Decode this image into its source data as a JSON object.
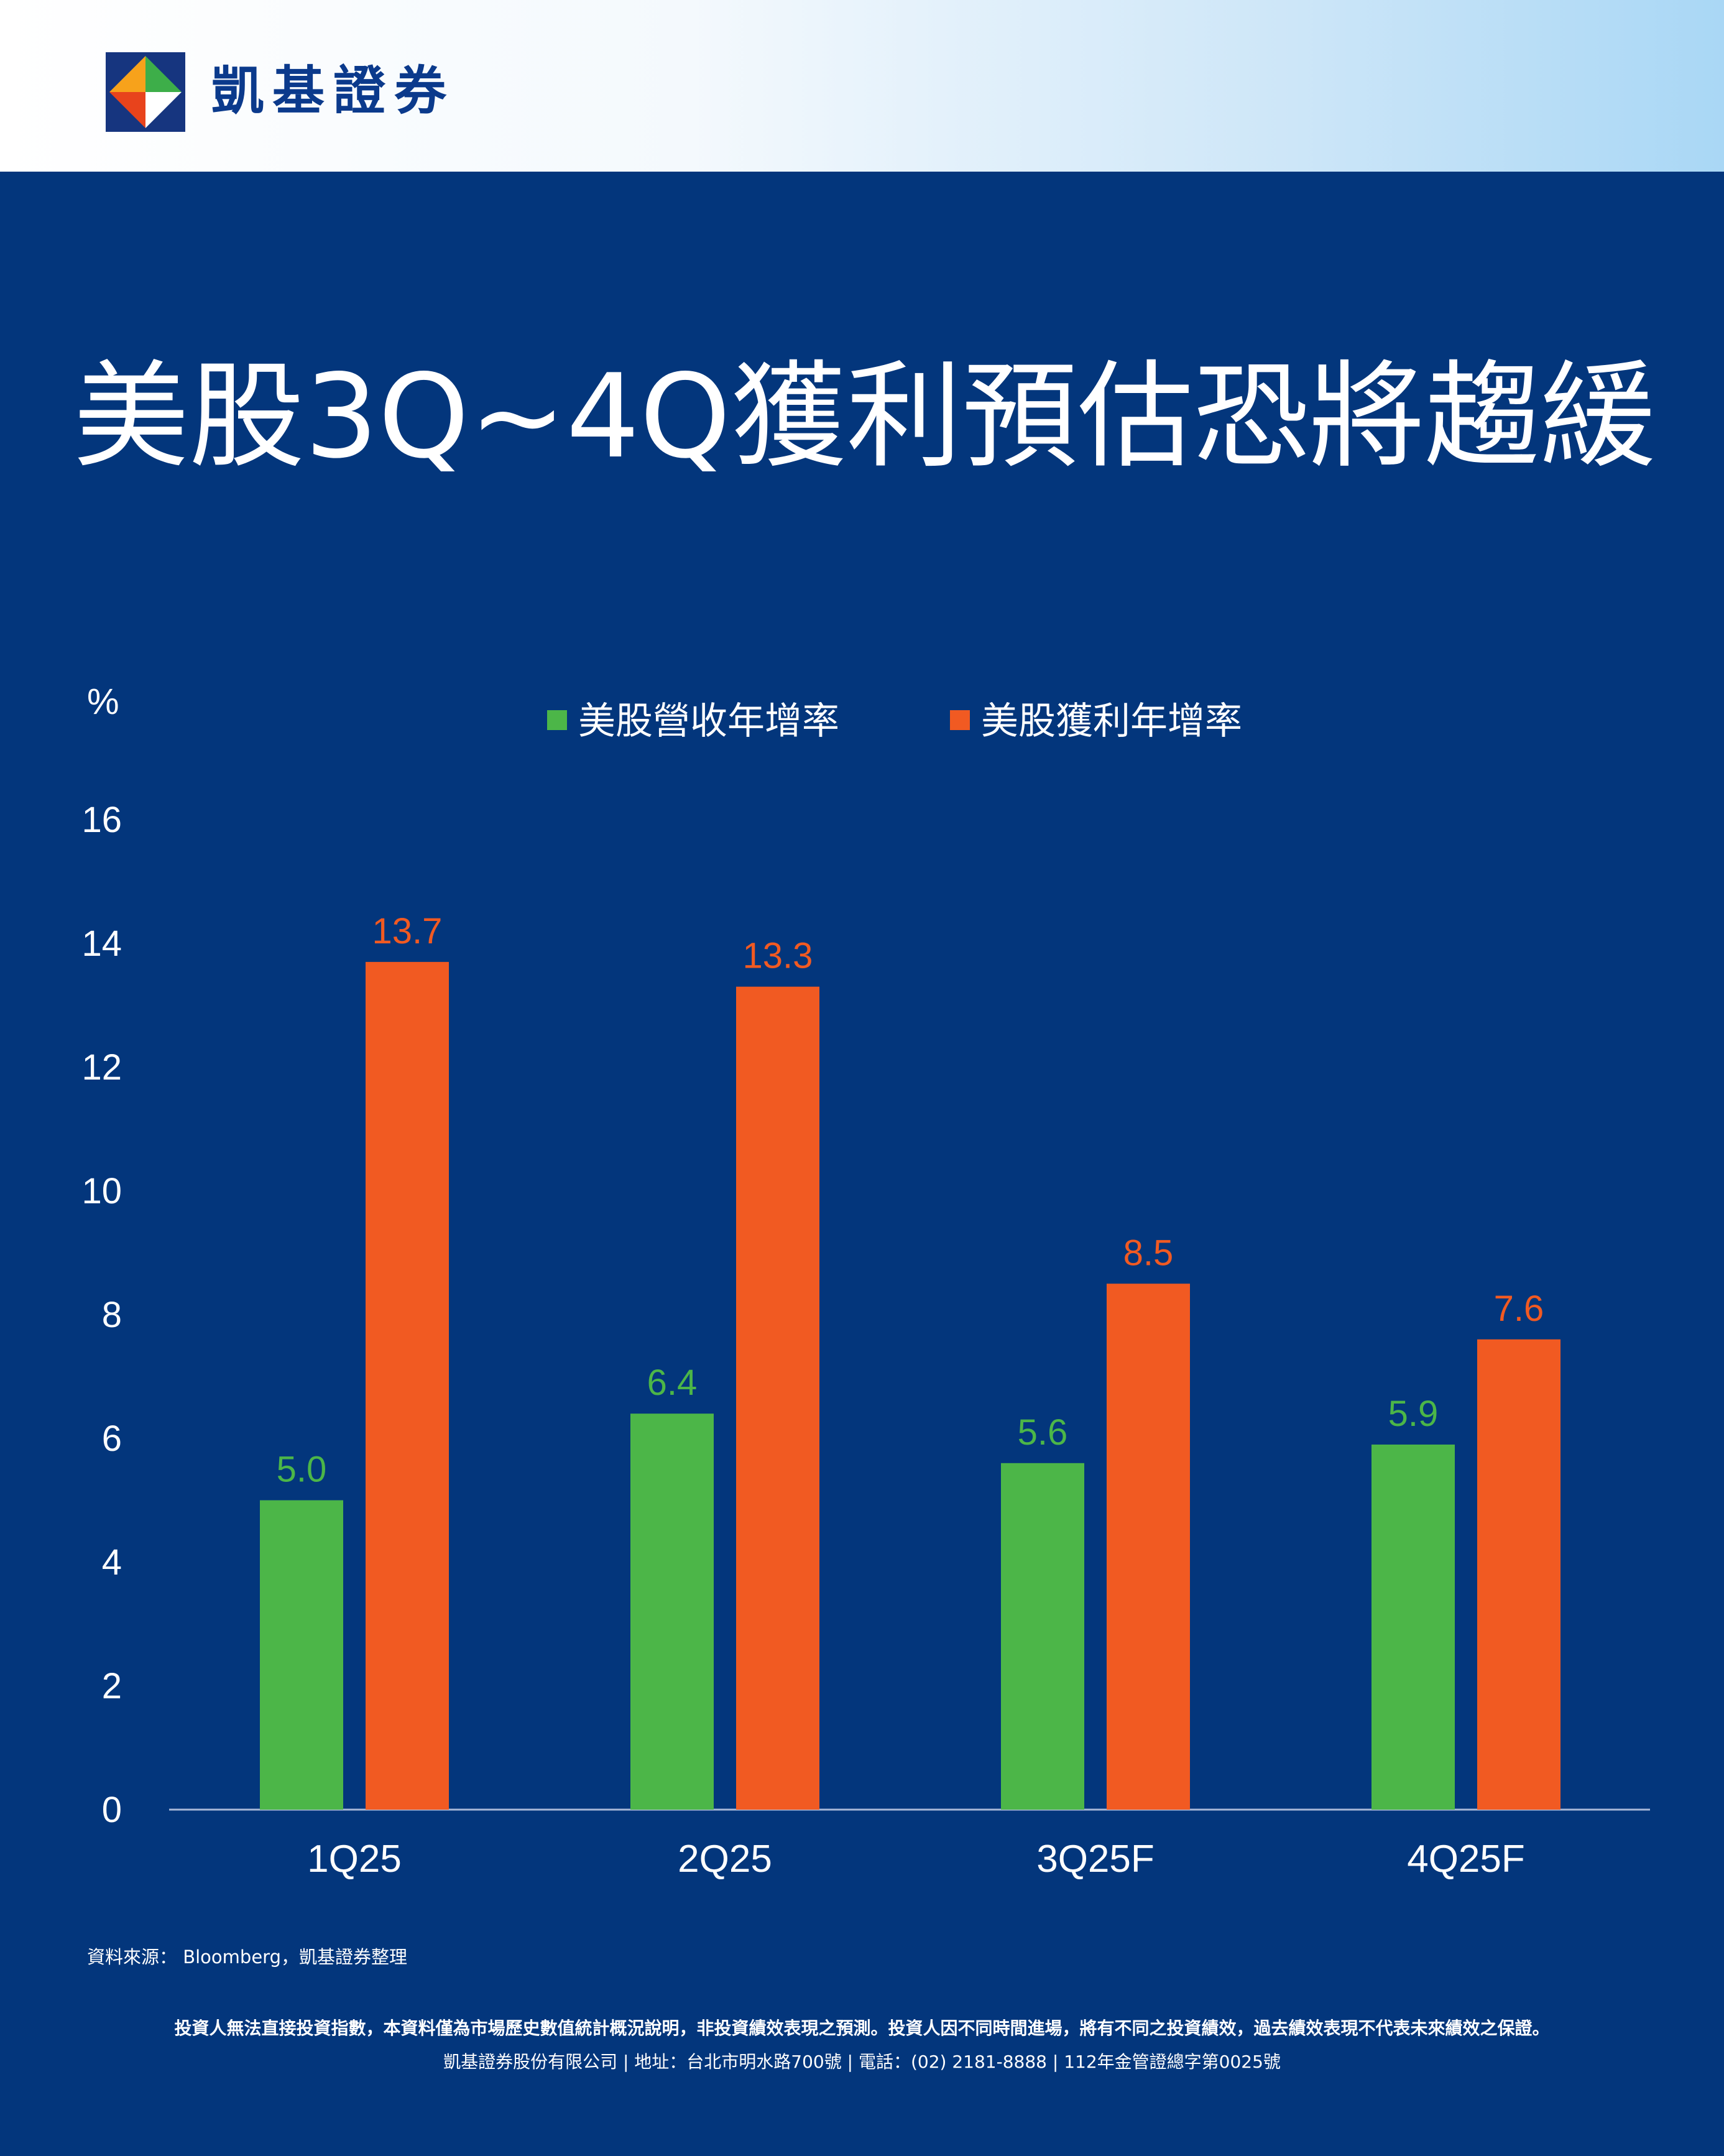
{
  "brand": {
    "name": "凱基證券"
  },
  "title": "美股3Q~4Q獲利預估恐將趨緩",
  "chart_data": {
    "type": "bar",
    "ylabel": "%",
    "ylim": [
      0,
      16
    ],
    "yticks": [
      "0",
      "2",
      "4",
      "6",
      "8",
      "10",
      "12",
      "14",
      "16"
    ],
    "categories": [
      "1Q25",
      "2Q25",
      "3Q25F",
      "4Q25F"
    ],
    "legend_position": "top-center",
    "grid": false,
    "series": [
      {
        "name": "美股營收年增率",
        "color": "#4cb648",
        "values": [
          5.0,
          6.4,
          5.6,
          5.9
        ],
        "labels": [
          "5.0",
          "6.4",
          "5.6",
          "5.9"
        ]
      },
      {
        "name": "美股獲利年增率",
        "color": "#f15a22",
        "values": [
          13.7,
          13.3,
          8.5,
          7.6
        ],
        "labels": [
          "13.7",
          "13.3",
          "8.5",
          "7.6"
        ]
      }
    ]
  },
  "source_note": "資料來源： Bloomberg，凱基證券整理",
  "disclaimer": "投資人無法直接投資指數，本資料僅為市場歷史數值統計概況說明，非投資績效表現之預測。投資人因不同時間進場，將有不同之投資績效，過去績效表現不代表未來績效之保證。",
  "company_info": "凱基證券股份有限公司 | 地址：台北市明水路700號 | 電話：(02) 2181-8888 | 112年金管證總字第0025號"
}
